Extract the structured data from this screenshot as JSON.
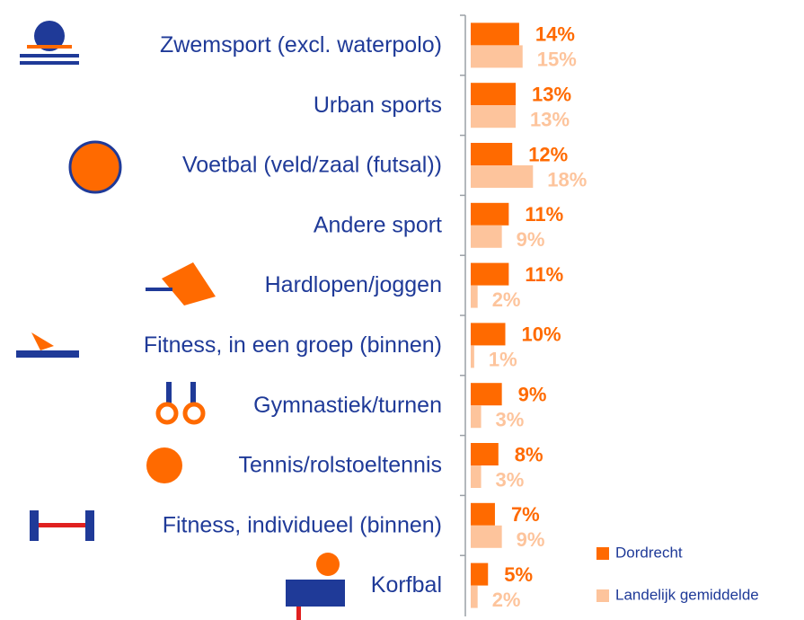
{
  "chart_data": {
    "type": "bar",
    "orientation": "horizontal",
    "categories": [
      "Zwemsport (excl. waterpolo)",
      "Urban sports",
      "Voetbal (veld/zaal (futsal))",
      "Andere sport",
      "Hardlopen/joggen",
      "Fitness, in een groep (binnen)",
      "Gymnastiek/turnen",
      "Tennis/rolstoeltennis",
      "Fitness, individueel (binnen)",
      "Korfbal"
    ],
    "series": [
      {
        "name": "Dordrecht",
        "color": "#ff6a00",
        "values": [
          14,
          13,
          12,
          11,
          11,
          10,
          9,
          8,
          7,
          5
        ],
        "value_labels": [
          "14%",
          "13%",
          "12%",
          "11%",
          "11%",
          "10%",
          "9%",
          "8%",
          "7%",
          "5%"
        ]
      },
      {
        "name": "Landelijk gemiddelde",
        "color": "#fdc49c",
        "values": [
          15,
          13,
          18,
          9,
          2,
          1,
          3,
          3,
          9,
          2
        ],
        "value_labels": [
          "15%",
          "13%",
          "18%",
          "9%",
          "2%",
          "1%",
          "3%",
          "3%",
          "9%",
          "2%"
        ]
      }
    ],
    "legend": "bottom-right"
  }
}
